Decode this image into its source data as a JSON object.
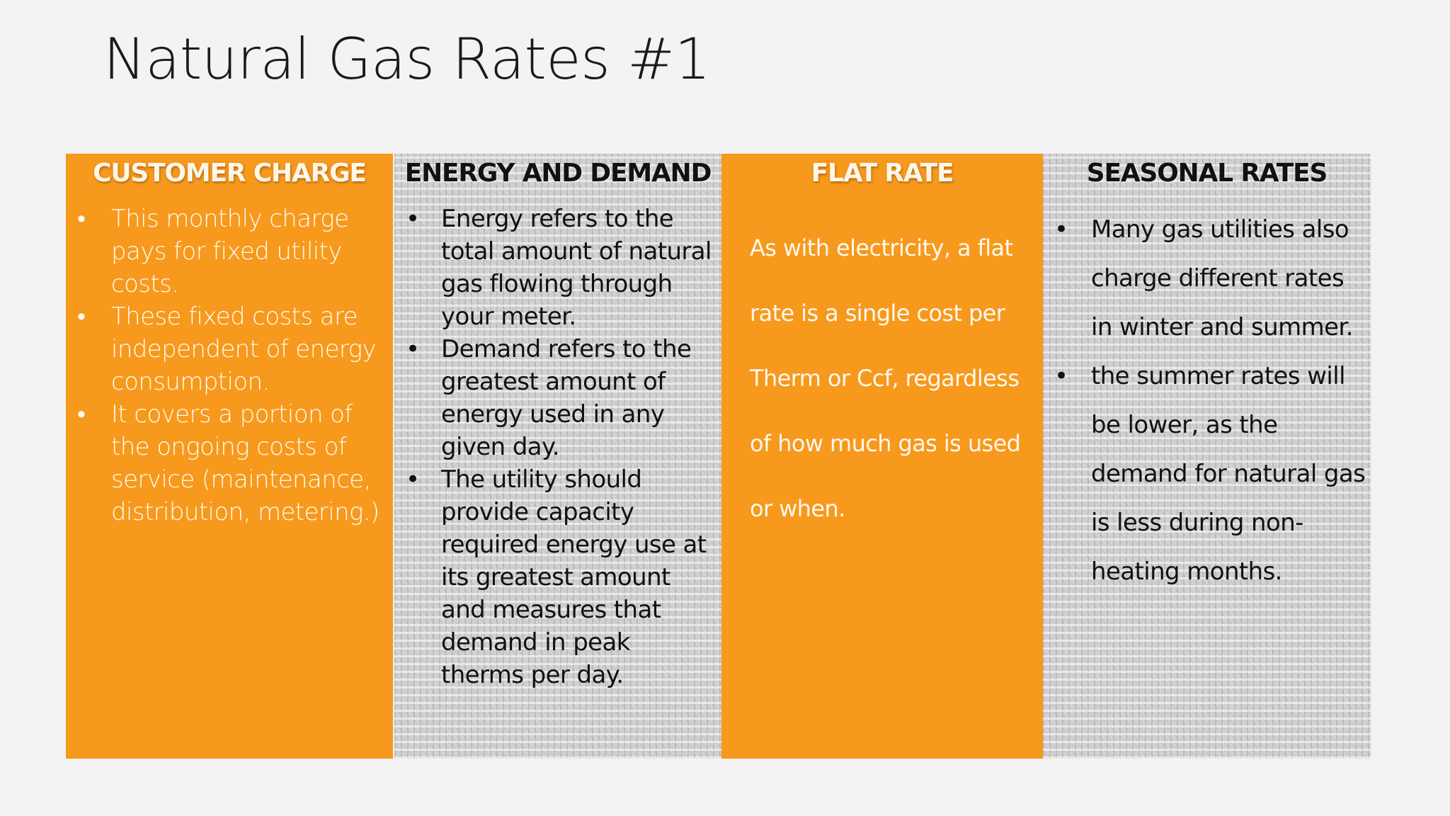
{
  "slide": {
    "title": "Natural Gas Rates #1"
  },
  "columns": {
    "customer_charge": {
      "heading": "CUSTOMER CHARGE",
      "bullets": [
        "This monthly charge pays for fixed utility costs.",
        "These fixed costs are independent of energy consumption.",
        "It covers a portion of the ongoing costs of service (maintenance, distribution, metering.)"
      ]
    },
    "energy_demand": {
      "heading": "ENERGY AND DEMAND",
      "bullets": [
        "Energy refers to the total amount of natural gas flowing through your meter.",
        "Demand refers to the greatest amount of energy used in any given day.",
        "The utility should provide capacity required energy use at its greatest amount and measures that demand in peak therms per day."
      ]
    },
    "flat_rate": {
      "heading": "FLAT RATE",
      "text": "As with electricity, a flat rate is a single cost per Therm or Ccf, regardless of how much gas is used or when."
    },
    "seasonal_rates": {
      "heading": "SEASONAL RATES",
      "bullets": [
        "Many gas utilities also charge different rates in winter and summer.",
        "the summer rates will be lower, as the demand for natural gas is less during non-heating months."
      ]
    }
  },
  "bullet_glyph": "•",
  "colors": {
    "orange": "#f7991c",
    "gray": "#d2d2d2",
    "background": "#f4f3f3"
  }
}
